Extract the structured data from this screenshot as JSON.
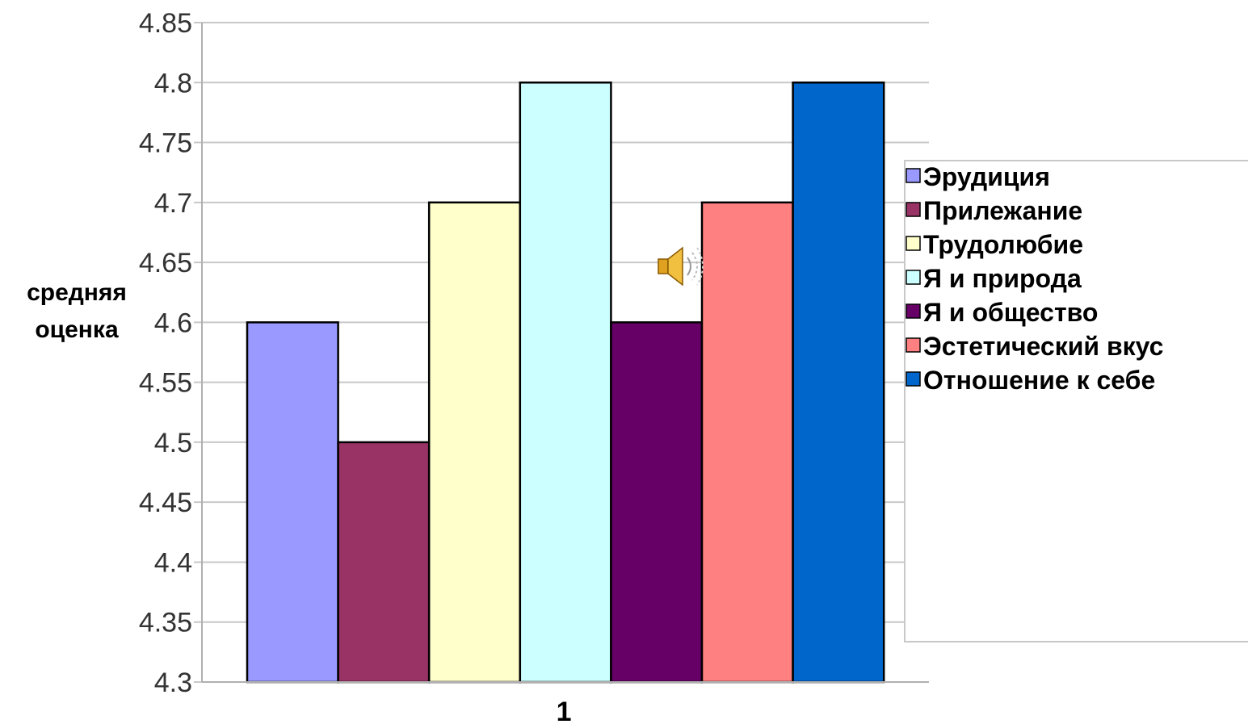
{
  "chart_data": {
    "type": "bar",
    "categories": [
      "1"
    ],
    "series": [
      {
        "name": "Эрудиция",
        "values": [
          4.6
        ],
        "color": "#9999ff"
      },
      {
        "name": "Прилежание",
        "values": [
          4.5
        ],
        "color": "#993366"
      },
      {
        "name": "Трудолюбие",
        "values": [
          4.7
        ],
        "color": "#ffffcc"
      },
      {
        "name": "Я и природа",
        "values": [
          4.8
        ],
        "color": "#ccffff"
      },
      {
        "name": "Я и общество",
        "values": [
          4.6
        ],
        "color": "#660066"
      },
      {
        "name": "Эстетический вкус",
        "values": [
          4.7
        ],
        "color": "#ff8080"
      },
      {
        "name": "Отношение к себе",
        "values": [
          4.8
        ],
        "color": "#0066cc"
      }
    ],
    "yticks": [
      "4.3",
      "4.35",
      "4.4",
      "4.45",
      "4.5",
      "4.55",
      "4.6",
      "4.65",
      "4.7",
      "4.75",
      "4.8",
      "4.85"
    ],
    "ylim": [
      4.3,
      4.85
    ],
    "ylabel_line1": "средняя",
    "ylabel_line2": "оценка",
    "xlabel": "",
    "grid": true,
    "legend_position": "right",
    "speaker_icon": "speaker-icon"
  }
}
